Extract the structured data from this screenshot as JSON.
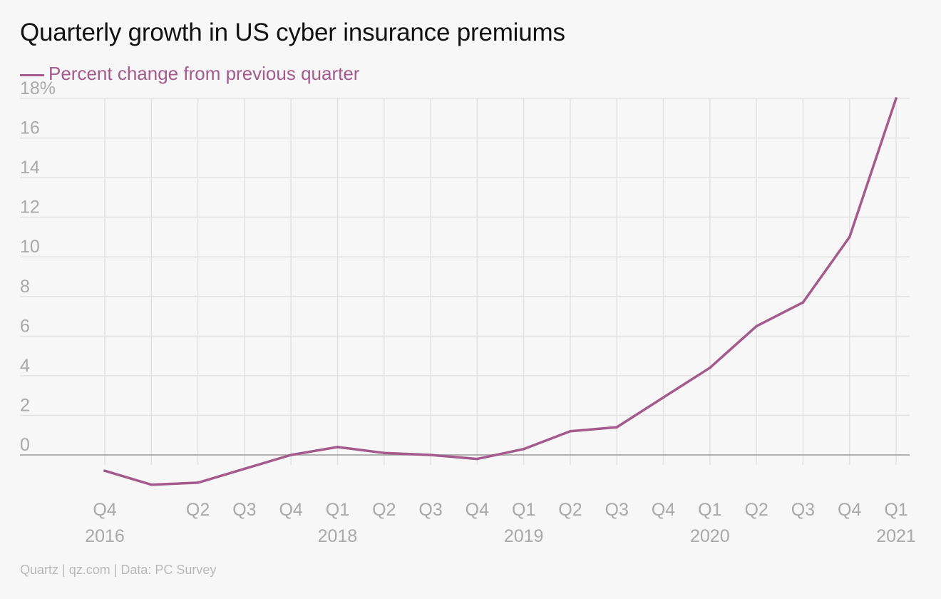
{
  "title": "Quarterly growth in US cyber insurance premiums",
  "legend_label": "Percent change from previous quarter",
  "source": "Quartz | qz.com | Data: PC Survey",
  "colors": {
    "line": "#a45a8c",
    "grid": "#e3e3e3",
    "zero_line": "#9a9a9a",
    "tick_text": "#a9a9a9"
  },
  "chart_data": {
    "type": "line",
    "title": "Quarterly growth in US cyber insurance premiums",
    "xlabel": "",
    "ylabel": "",
    "ylim": [
      -2,
      18
    ],
    "yticks": [
      0,
      2,
      4,
      6,
      8,
      10,
      12,
      14,
      16,
      18
    ],
    "ytick_labels": [
      "0",
      "2",
      "4",
      "6",
      "8",
      "10",
      "12",
      "14",
      "16",
      "18%"
    ],
    "grid": true,
    "legend_position": "top-left",
    "x": [
      "2016 Q4",
      "2017 Q1",
      "2017 Q2",
      "2017 Q3",
      "2017 Q4",
      "2018 Q1",
      "2018 Q2",
      "2018 Q3",
      "2018 Q4",
      "2019 Q1",
      "2019 Q2",
      "2019 Q3",
      "2019 Q4",
      "2020 Q1",
      "2020 Q2",
      "2020 Q3",
      "2020 Q4",
      "2021 Q1"
    ],
    "x_tick_labels": [
      "Q4",
      "",
      "Q2",
      "Q3",
      "Q4",
      "Q1",
      "Q2",
      "Q3",
      "Q4",
      "Q1",
      "Q2",
      "Q3",
      "Q4",
      "Q1",
      "Q2",
      "Q3",
      "Q4",
      "Q1"
    ],
    "x_year_labels": [
      "2016",
      "",
      "",
      "",
      "",
      "2018",
      "",
      "",
      "",
      "2019",
      "",
      "",
      "",
      "2020",
      "",
      "",
      "",
      "2021"
    ],
    "series": [
      {
        "name": "Percent change from previous quarter",
        "values": [
          -0.8,
          -1.5,
          -1.4,
          -0.7,
          0.0,
          0.4,
          0.1,
          0.0,
          -0.2,
          0.3,
          1.2,
          1.4,
          2.9,
          4.4,
          6.5,
          7.7,
          11.0,
          18.0
        ]
      }
    ]
  }
}
